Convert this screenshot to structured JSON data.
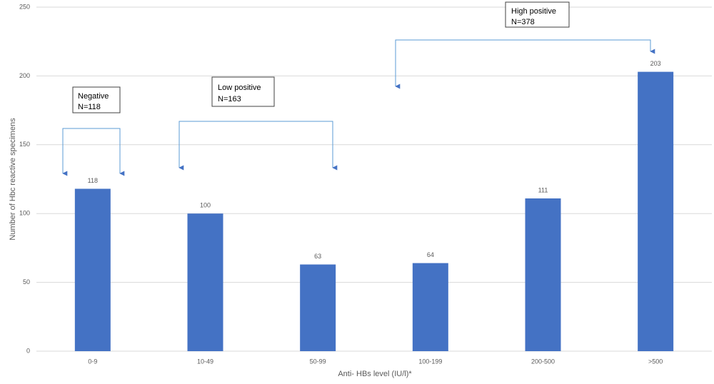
{
  "chart_data": {
    "type": "bar",
    "categories": [
      "0-9",
      "10-49",
      "50-99",
      "100-199",
      "200-500",
      ">500"
    ],
    "values": [
      118,
      100,
      63,
      64,
      111,
      203
    ],
    "color": "#4472c4",
    "xlabel": "Anti- HBs level (IU/l)*",
    "ylabel": "Number of Hbc reactive specimens",
    "ylim": [
      0,
      250
    ],
    "yticks": [
      0,
      50,
      100,
      150,
      200,
      250
    ],
    "grid": true,
    "annotations": [
      [
        "Negative",
        "N=118"
      ],
      [
        "Low positive",
        "N=163"
      ],
      [
        "High positive",
        "N=378"
      ]
    ]
  }
}
